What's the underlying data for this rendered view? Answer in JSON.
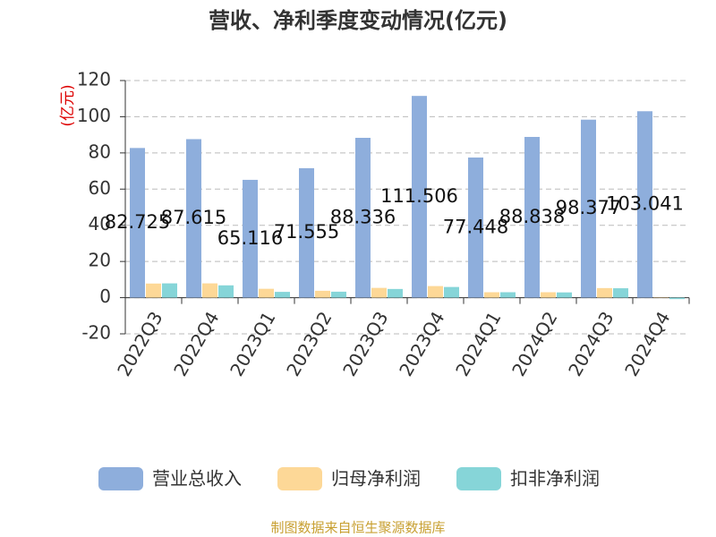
{
  "chart_data": {
    "type": "bar",
    "title": "营收、净利季度变动情况(亿元)",
    "y_label": "(亿元)",
    "categories": [
      "2022Q3",
      "2022Q4",
      "2023Q1",
      "2023Q2",
      "2023Q3",
      "2023Q4",
      "2024Q1",
      "2024Q2",
      "2024Q3",
      "2024Q4"
    ],
    "series": [
      {
        "name": "营业总收入",
        "color": "#8eaedc",
        "values": [
          82.725,
          87.615,
          65.116,
          71.555,
          88.336,
          111.506,
          77.448,
          88.838,
          98.377,
          103.041
        ],
        "show_labels": true
      },
      {
        "name": "归母净利润",
        "color": "#fdd897",
        "values": [
          7.8,
          7.9,
          4.9,
          3.8,
          5.4,
          6.4,
          3.0,
          3.0,
          5.3,
          0.2
        ],
        "show_labels": false
      },
      {
        "name": "扣非净利润",
        "color": "#86d5d8",
        "values": [
          7.9,
          6.8,
          3.2,
          3.3,
          4.8,
          5.9,
          3.0,
          2.9,
          5.2,
          -0.8
        ],
        "show_labels": false
      }
    ],
    "ylim": [
      -20,
      120
    ],
    "yticks": [
      -20,
      0,
      20,
      40,
      60,
      80,
      100,
      120
    ],
    "grid": true,
    "legend": "bottom",
    "source": "制图数据来自恒生聚源数据库"
  }
}
